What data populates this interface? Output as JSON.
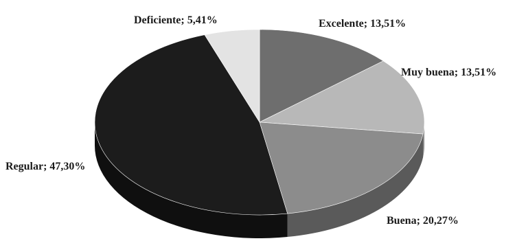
{
  "chart_data": {
    "type": "pie",
    "style": "3d",
    "slices": [
      {
        "category": "Excelente",
        "value": 13.51,
        "label": "Excelente; 13,51%",
        "color": "#6e6e6e",
        "side_color": "#4a4a4a"
      },
      {
        "category": "Muy buena",
        "value": 13.51,
        "label": "Muy buena; 13,51%",
        "color": "#b8b8b8",
        "side_color": "#8a8a8a"
      },
      {
        "category": "Buena",
        "value": 20.27,
        "label": "Buena; 20,27%",
        "color": "#8c8c8c",
        "side_color": "#5a5a5a"
      },
      {
        "category": "Regular",
        "value": 47.3,
        "label": "Regular; 47,30%",
        "color": "#1c1c1c",
        "side_color": "#0f0f0f"
      },
      {
        "category": "Deficiente",
        "value": 5.41,
        "label": "Deficiente; 5,41%",
        "color": "#e3e3e3",
        "side_color": "#b5b5b5"
      }
    ]
  }
}
